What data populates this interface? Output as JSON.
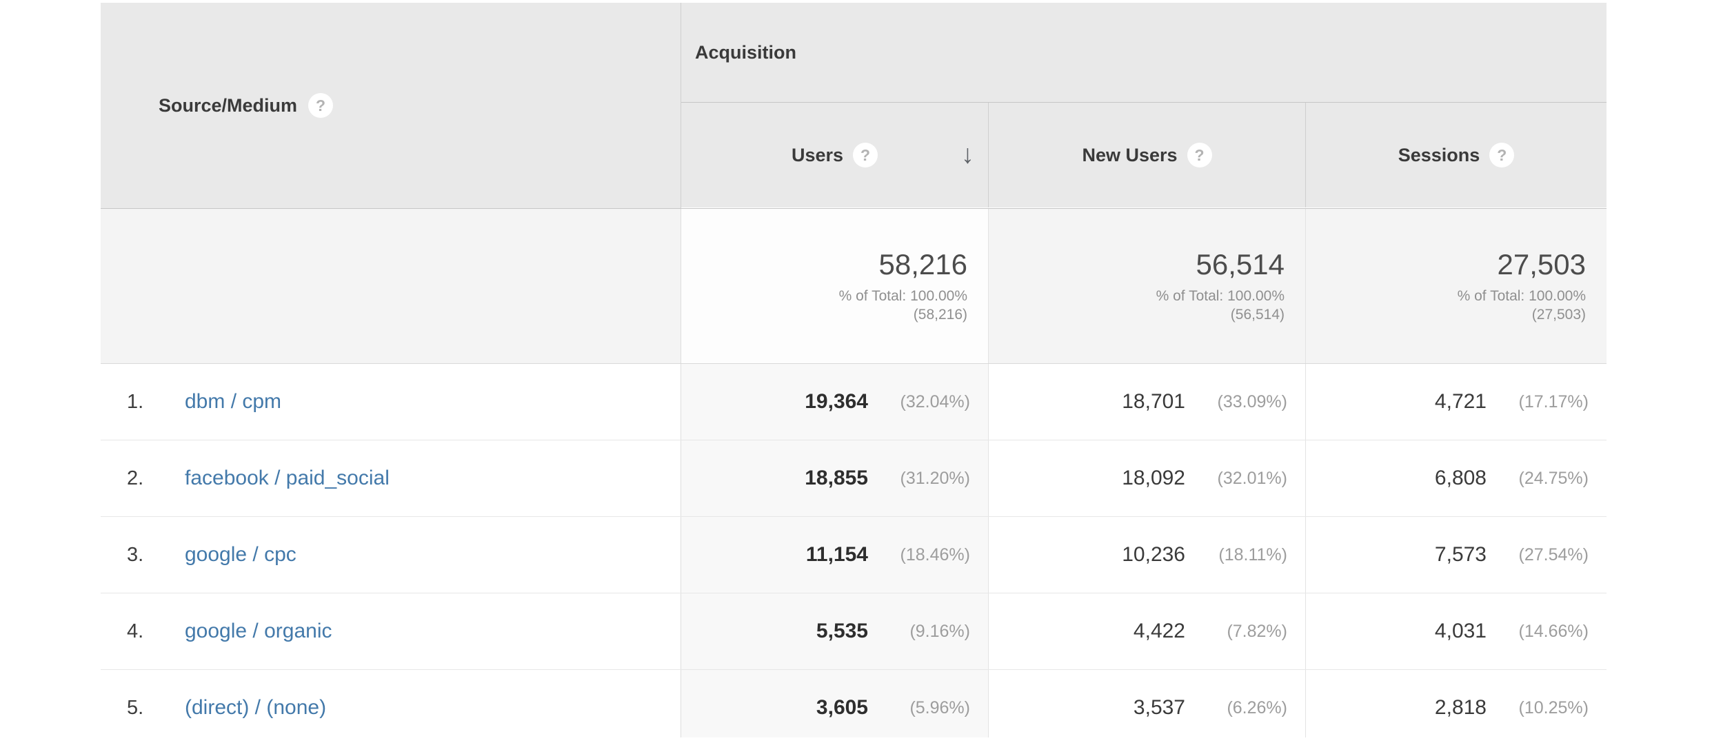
{
  "icons": {
    "help": "?",
    "sort_desc": "↓"
  },
  "colors": {
    "link": "#4379aa",
    "header_bg": "#e9e9e9",
    "sorted_column_bg": "#f8f8f8",
    "totals_bg": "#f4f4f4"
  },
  "table": {
    "dimension_header": {
      "label": "Source/Medium"
    },
    "group_header": {
      "label": "Acquisition"
    },
    "columns": [
      {
        "label": "Users",
        "sorted": "descending"
      },
      {
        "label": "New Users"
      },
      {
        "label": "Sessions"
      }
    ],
    "totals": {
      "users": {
        "value": "58,216",
        "pct_line": "% of Total: 100.00%",
        "abs_line": "(58,216)"
      },
      "new_users": {
        "value": "56,514",
        "pct_line": "% of Total: 100.00%",
        "abs_line": "(56,514)"
      },
      "sessions": {
        "value": "27,503",
        "pct_line": "% of Total: 100.00%",
        "abs_line": "(27,503)"
      }
    },
    "rows": [
      {
        "rank": "1.",
        "source_medium": "dbm / cpm",
        "users": "19,364",
        "users_pct": "(32.04%)",
        "new_users": "18,701",
        "new_users_pct": "(33.09%)",
        "sessions": "4,721",
        "sessions_pct": "(17.17%)"
      },
      {
        "rank": "2.",
        "source_medium": "facebook / paid_social",
        "users": "18,855",
        "users_pct": "(31.20%)",
        "new_users": "18,092",
        "new_users_pct": "(32.01%)",
        "sessions": "6,808",
        "sessions_pct": "(24.75%)"
      },
      {
        "rank": "3.",
        "source_medium": "google / cpc",
        "users": "11,154",
        "users_pct": "(18.46%)",
        "new_users": "10,236",
        "new_users_pct": "(18.11%)",
        "sessions": "7,573",
        "sessions_pct": "(27.54%)"
      },
      {
        "rank": "4.",
        "source_medium": "google / organic",
        "users": "5,535",
        "users_pct": "(9.16%)",
        "new_users": "4,422",
        "new_users_pct": "(7.82%)",
        "sessions": "4,031",
        "sessions_pct": "(14.66%)"
      },
      {
        "rank": "5.",
        "source_medium": "(direct) / (none)",
        "users": "3,605",
        "users_pct": "(5.96%)",
        "new_users": "3,537",
        "new_users_pct": "(6.26%)",
        "sessions": "2,818",
        "sessions_pct": "(10.25%)"
      }
    ]
  }
}
